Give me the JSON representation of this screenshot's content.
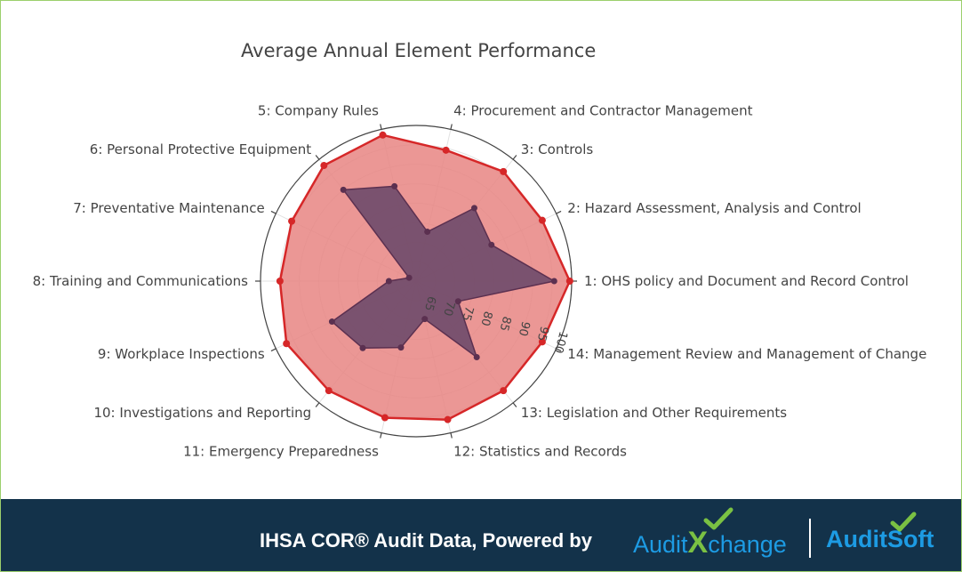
{
  "chart_data": {
    "type": "radar",
    "title": "Average Annual Element Performance",
    "categories": [
      "1: OHS policy and Document and Record Control",
      "2: Hazard Assessment, Analysis and Control",
      "3: Controls",
      "4: Procurement and Contractor Management",
      "5: Company Rules",
      "6: Personal Protective Equipment",
      "7: Preventative Maintenance",
      "8: Training and Communications",
      "9: Workplace Inspections",
      "10: Investigations and Reporting",
      "11: Emergency Preparedness",
      "12: Statistics and Records",
      "13: Legislation and Other Requirements",
      "14: Management Review and Management of Change"
    ],
    "radial_range": [
      60,
      100
    ],
    "radial_ticks": [
      "65",
      "70",
      "75",
      "80",
      "85",
      "90",
      "95",
      "100"
    ],
    "series": [
      {
        "color": "#d62728",
        "fill": "#e88582",
        "values": [
          99.5,
          96,
          96,
          94.5,
          98.5,
          98,
          95.5,
          95,
          97,
          96,
          96,
          96.5,
          96,
          96
        ]
      },
      {
        "color": "#5b3050",
        "fill": "#6e4a6a",
        "values": [
          95.5,
          81.5,
          84,
          73,
          85,
          90,
          62,
          67,
          84,
          82,
          77.5,
          70,
          85,
          72
        ]
      }
    ]
  },
  "footer": {
    "text": "IHSA COR® Audit Data, Powered by",
    "logo1_a": "Audit",
    "logo1_x": "X",
    "logo1_b": "change",
    "logo2": "AuditSoft"
  }
}
